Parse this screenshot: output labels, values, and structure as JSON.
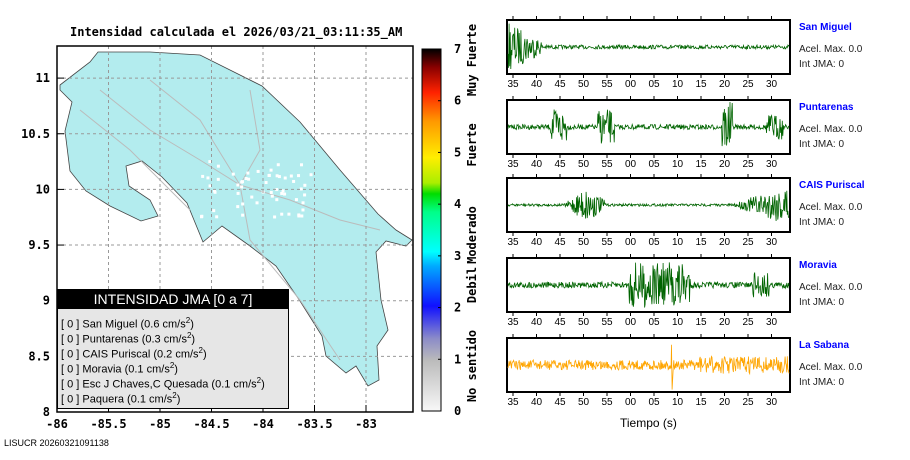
{
  "chart_data": [
    {
      "type": "map",
      "title": "Intensidad calculada el 2026/03/21_03:11:35_AM",
      "xlim": [
        -86,
        -82.55
      ],
      "ylim": [
        8,
        11.3
      ],
      "xticks": [
        "-86",
        "-85.5",
        "-85",
        "-84.5",
        "-84",
        "-83.5",
        "-83"
      ],
      "yticks": [
        "8",
        "8.5",
        "9",
        "9.5",
        "10",
        "10.5",
        "11"
      ],
      "land_color": "#b3ecee",
      "colorbar": {
        "min": 0,
        "max": 7,
        "ticks": [
          "0",
          "1",
          "2",
          "3",
          "4",
          "5",
          "6",
          "7"
        ],
        "classes": [
          "No sentido",
          "Debil",
          "Moderado",
          "Fuerte",
          "Muy Fuerte"
        ]
      }
    },
    {
      "type": "line",
      "xlabel": "Tiempo (s)",
      "xticks": [
        "35",
        "40",
        "45",
        "50",
        "55",
        "00",
        "05",
        "10",
        "15",
        "20",
        "25",
        "30"
      ],
      "stations": [
        {
          "name": "San Miguel",
          "acel": "Acel. Max. 0.0",
          "int": "Int JMA: 0",
          "color": "#006400"
        },
        {
          "name": "Puntarenas",
          "acel": "Acel. Max. 0.0",
          "int": "Int JMA: 0",
          "color": "#006400"
        },
        {
          "name": "CAIS Puriscal",
          "acel": "Acel. Max. 0.0",
          "int": "Int JMA: 0",
          "color": "#006400"
        },
        {
          "name": "Moravia",
          "acel": "Acel. Max. 0.0",
          "int": "Int JMA: 0",
          "color": "#006400"
        },
        {
          "name": "La Sabana",
          "acel": "Acel. Max. 0.0",
          "int": "Int JMA: 0",
          "color": "#ffa500"
        }
      ]
    }
  ],
  "legend": {
    "title": "INTENSIDAD JMA [0 a 7]",
    "rows": [
      {
        "int": "[ 0 ]",
        "station": "San Miguel (0.6 cm/s",
        "sup": "2",
        ")": ")"
      },
      {
        "int": "[ 0 ]",
        "station": "Puntarenas (0.3 cm/s",
        "sup": "2"
      },
      {
        "int": "[ 0 ]",
        "station": "CAIS Puriscal (0.2 cm/s",
        "sup": "2"
      },
      {
        "int": "[ 0 ]",
        "station": "Moravia (0.1 cm/s",
        "sup": "2"
      },
      {
        "int": "[ 0 ]",
        "station": "Esc J Chaves,C Quesada (0.1 cm/s",
        "sup": "2"
      },
      {
        "int": "[ 0 ]",
        "station": "Paquera (0.1 cm/s",
        "sup": "2"
      }
    ]
  },
  "footer": "LISUCR 20260321091138"
}
